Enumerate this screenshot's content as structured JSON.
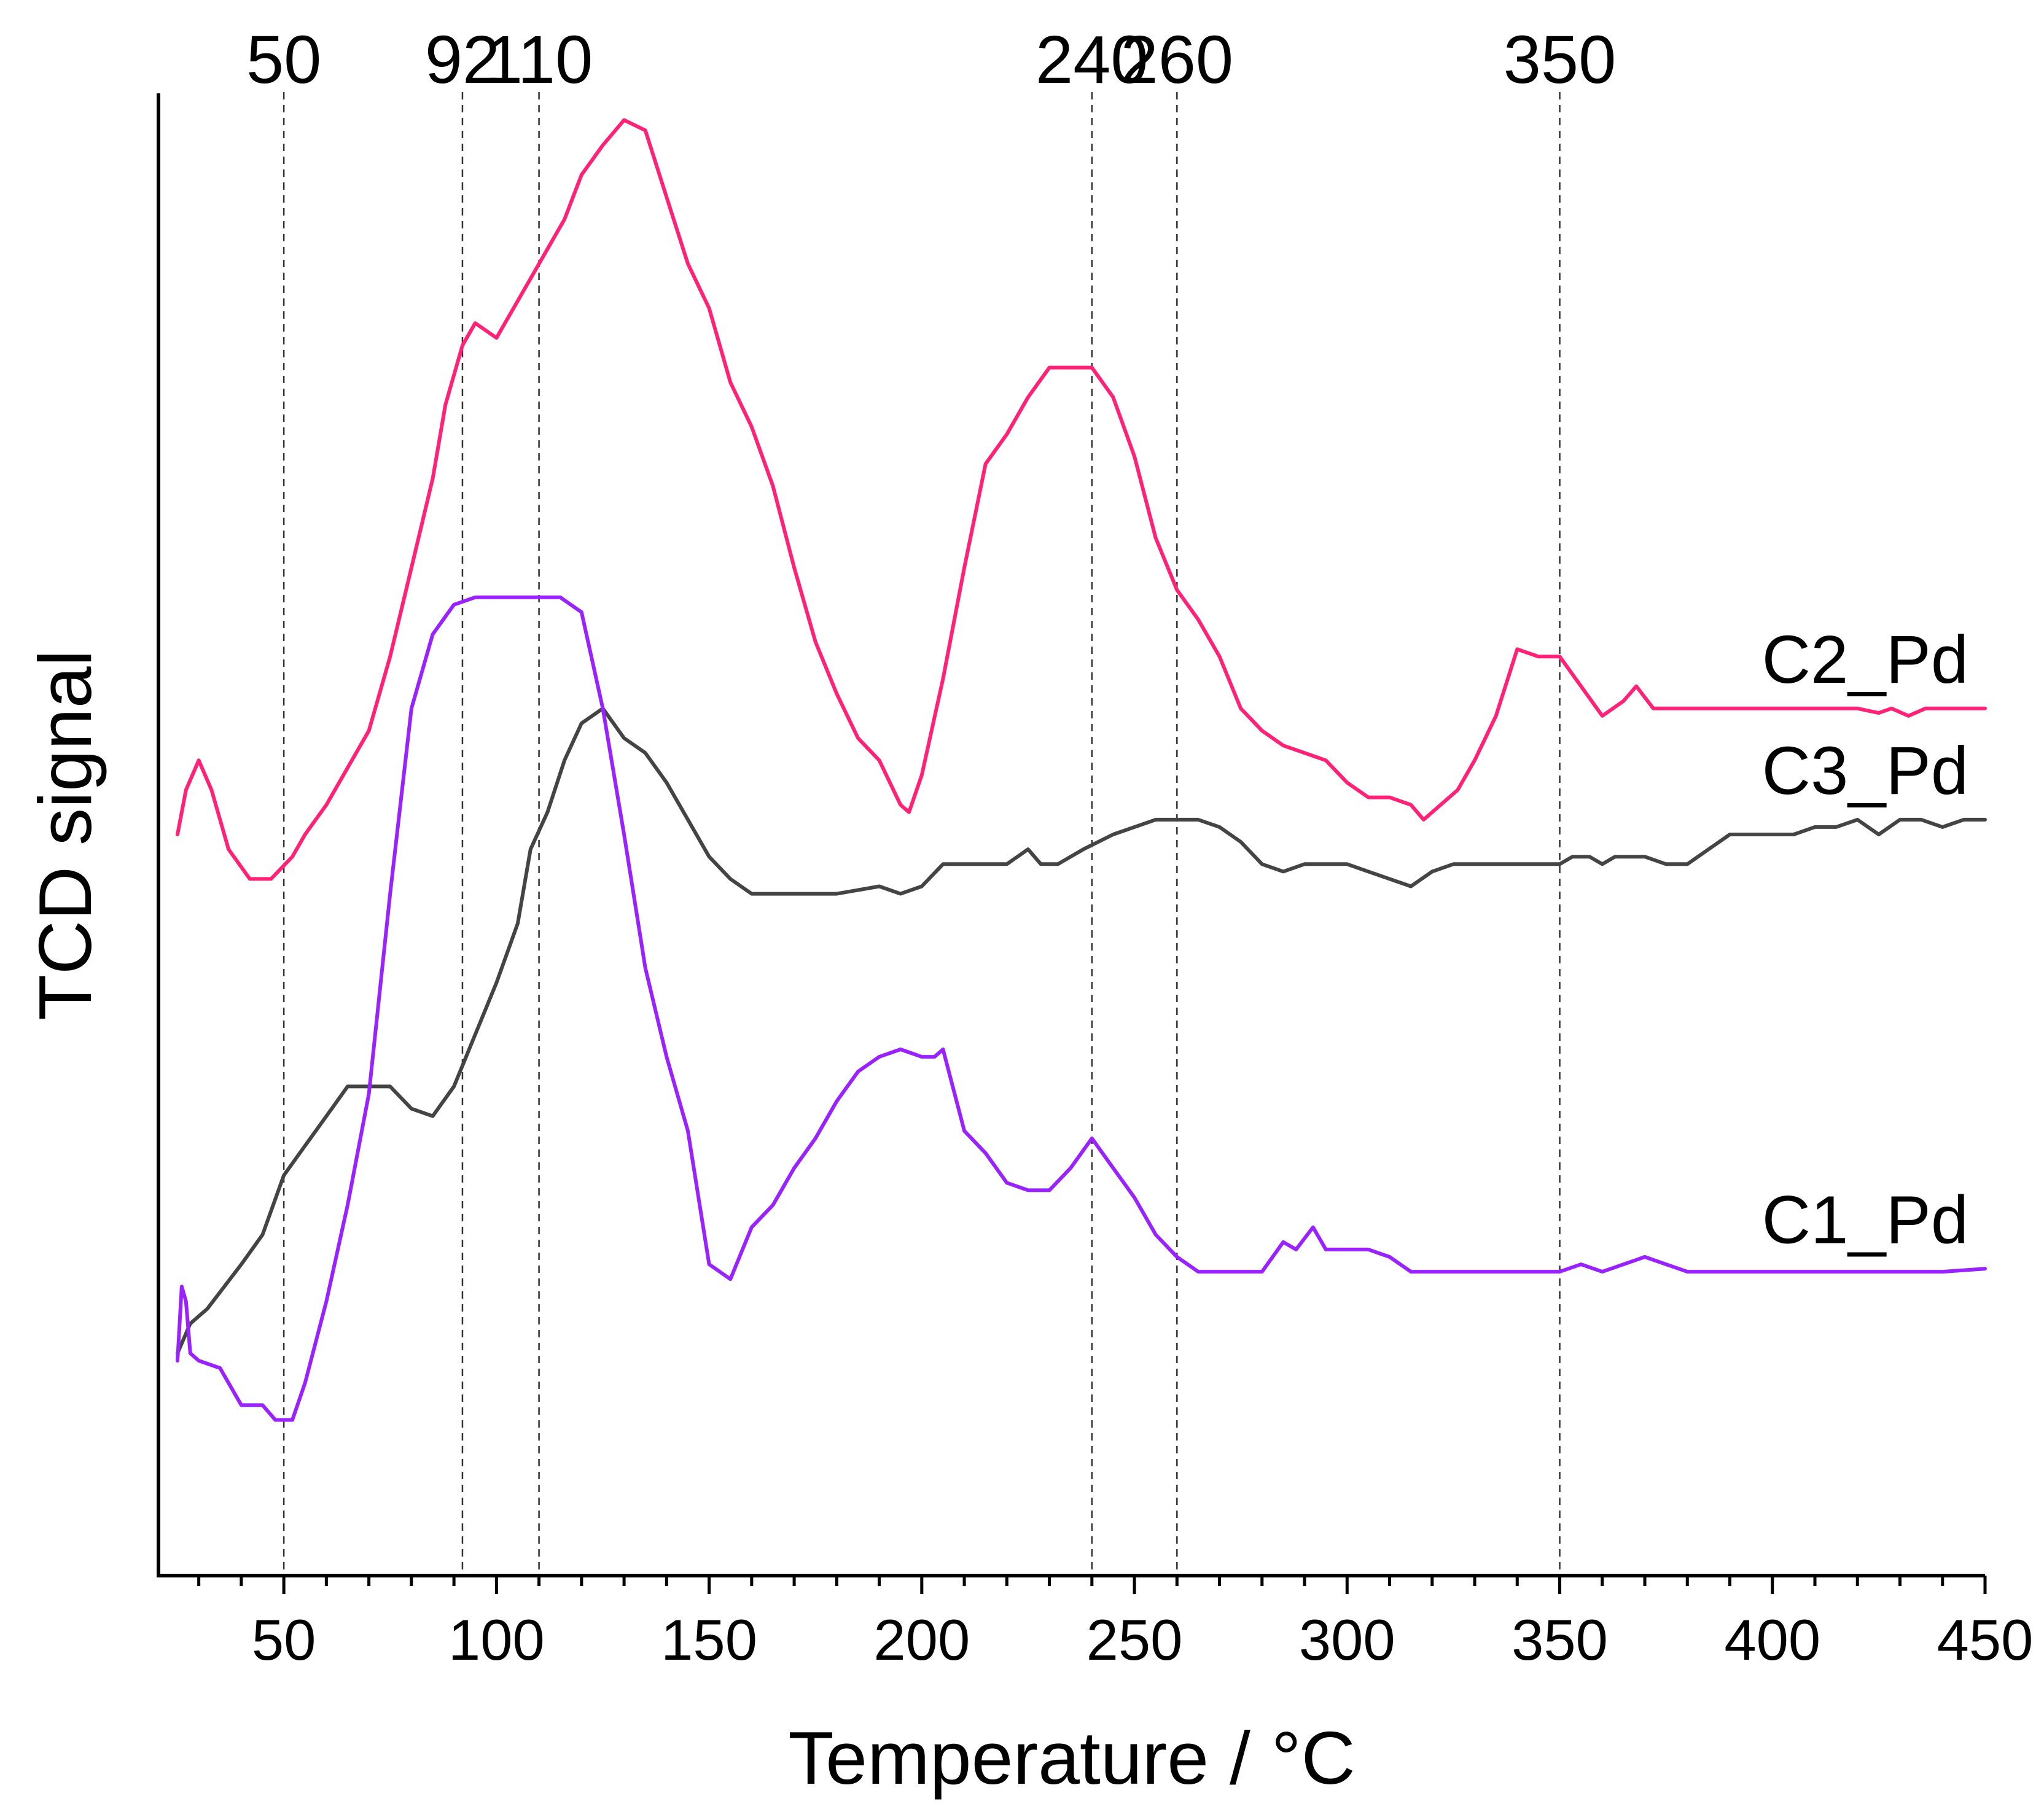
{
  "chart_data": {
    "type": "line",
    "title": "",
    "xlabel": "Temperature / °C",
    "ylabel": "TCD signal",
    "xlim": [
      20,
      450
    ],
    "ylim": [
      0,
      10
    ],
    "x_ticks": [
      50,
      100,
      150,
      200,
      250,
      300,
      350,
      400,
      450
    ],
    "y_ticks": [],
    "grid": false,
    "legend": "inline labels at right end of each curve",
    "reference_lines": [
      {
        "x": 50,
        "label": "50"
      },
      {
        "x": 92,
        "label": "92"
      },
      {
        "x": 110,
        "label": "110"
      },
      {
        "x": 240,
        "label": "240"
      },
      {
        "x": 260,
        "label": "260"
      },
      {
        "x": 350,
        "label": "350"
      }
    ],
    "series": [
      {
        "name": "C2_Pd",
        "label": "C2_Pd",
        "color": "#ff2277",
        "x": [
          25,
          27,
          30,
          33,
          37,
          42,
          47,
          52,
          55,
          60,
          65,
          70,
          75,
          80,
          85,
          88,
          92,
          95,
          100,
          104,
          108,
          112,
          116,
          120,
          125,
          130,
          135,
          140,
          145,
          150,
          155,
          160,
          165,
          170,
          175,
          180,
          185,
          190,
          195,
          197,
          200,
          205,
          210,
          215,
          220,
          225,
          230,
          235,
          240,
          245,
          250,
          255,
          260,
          265,
          270,
          275,
          280,
          285,
          290,
          295,
          300,
          305,
          310,
          315,
          318,
          322,
          326,
          330,
          335,
          340,
          345,
          350,
          355,
          360,
          365,
          368,
          372,
          380,
          400,
          420,
          425,
          428,
          432,
          436,
          440,
          450
        ],
        "values": [
          5.0,
          5.3,
          5.5,
          5.3,
          4.9,
          4.7,
          4.7,
          4.85,
          5.0,
          5.2,
          5.45,
          5.7,
          6.2,
          6.8,
          7.4,
          7.9,
          8.3,
          8.45,
          8.35,
          8.55,
          8.75,
          8.95,
          9.15,
          9.45,
          9.65,
          9.82,
          9.75,
          9.3,
          8.85,
          8.55,
          8.05,
          7.75,
          7.35,
          6.8,
          6.3,
          5.95,
          5.65,
          5.5,
          5.2,
          5.15,
          5.4,
          6.05,
          6.8,
          7.5,
          7.7,
          7.95,
          8.15,
          8.15,
          8.15,
          7.95,
          7.55,
          7.0,
          6.65,
          6.45,
          6.2,
          5.85,
          5.7,
          5.6,
          5.55,
          5.5,
          5.35,
          5.25,
          5.25,
          5.2,
          5.1,
          5.2,
          5.3,
          5.5,
          5.8,
          6.25,
          6.2,
          6.2,
          6.0,
          5.8,
          5.9,
          6.0,
          5.85,
          5.85,
          5.85,
          5.85,
          5.82,
          5.85,
          5.8,
          5.85,
          5.85,
          5.85
        ]
      },
      {
        "name": "C3_Pd",
        "label": "C3_Pd",
        "color": "#444444",
        "x": [
          25,
          28,
          32,
          36,
          40,
          45,
          50,
          55,
          60,
          65,
          70,
          75,
          80,
          85,
          90,
          95,
          100,
          105,
          108,
          112,
          116,
          120,
          125,
          130,
          135,
          140,
          145,
          150,
          155,
          160,
          170,
          180,
          190,
          195,
          200,
          205,
          210,
          220,
          225,
          228,
          232,
          238,
          245,
          250,
          255,
          260,
          265,
          270,
          275,
          280,
          285,
          290,
          295,
          300,
          305,
          310,
          315,
          320,
          325,
          330,
          335,
          340,
          345,
          350,
          353,
          357,
          360,
          363,
          367,
          370,
          375,
          380,
          385,
          390,
          395,
          400,
          405,
          410,
          415,
          420,
          425,
          430,
          435,
          440,
          445,
          450
        ],
        "values": [
          1.5,
          1.7,
          1.8,
          1.95,
          2.1,
          2.3,
          2.7,
          2.9,
          3.1,
          3.3,
          3.3,
          3.3,
          3.15,
          3.1,
          3.3,
          3.65,
          4.0,
          4.4,
          4.9,
          5.15,
          5.5,
          5.75,
          5.85,
          5.65,
          5.55,
          5.35,
          5.1,
          4.85,
          4.7,
          4.6,
          4.6,
          4.6,
          4.65,
          4.6,
          4.65,
          4.8,
          4.8,
          4.8,
          4.9,
          4.8,
          4.8,
          4.9,
          5.0,
          5.05,
          5.1,
          5.1,
          5.1,
          5.05,
          4.95,
          4.8,
          4.75,
          4.8,
          4.8,
          4.8,
          4.75,
          4.7,
          4.65,
          4.75,
          4.8,
          4.8,
          4.8,
          4.8,
          4.8,
          4.8,
          4.85,
          4.85,
          4.8,
          4.85,
          4.85,
          4.85,
          4.8,
          4.8,
          4.9,
          5.0,
          5.0,
          5.0,
          5.0,
          5.05,
          5.05,
          5.1,
          5.0,
          5.1,
          5.1,
          5.05,
          5.1,
          5.1
        ]
      },
      {
        "name": "C1_Pd",
        "label": "C1_Pd",
        "color": "#9922ff",
        "x": [
          25,
          26,
          27,
          28,
          30,
          35,
          40,
          45,
          48,
          52,
          55,
          60,
          65,
          70,
          75,
          80,
          85,
          90,
          95,
          100,
          105,
          110,
          115,
          120,
          125,
          130,
          135,
          140,
          145,
          150,
          155,
          160,
          165,
          170,
          175,
          180,
          185,
          190,
          195,
          200,
          203,
          205,
          210,
          215,
          220,
          225,
          230,
          235,
          240,
          245,
          250,
          255,
          260,
          265,
          270,
          275,
          280,
          285,
          288,
          292,
          295,
          300,
          305,
          310,
          315,
          320,
          325,
          330,
          335,
          340,
          345,
          350,
          355,
          360,
          365,
          370,
          375,
          380,
          395,
          400,
          410,
          420,
          430,
          440,
          450
        ],
        "values": [
          1.45,
          1.95,
          1.85,
          1.5,
          1.45,
          1.4,
          1.15,
          1.15,
          1.05,
          1.05,
          1.3,
          1.85,
          2.5,
          3.25,
          4.6,
          5.85,
          6.35,
          6.55,
          6.6,
          6.6,
          6.6,
          6.6,
          6.6,
          6.5,
          5.85,
          5.0,
          4.1,
          3.5,
          3.0,
          2.1,
          2.0,
          2.35,
          2.5,
          2.75,
          2.95,
          3.2,
          3.4,
          3.5,
          3.55,
          3.5,
          3.5,
          3.55,
          3.0,
          2.85,
          2.65,
          2.6,
          2.6,
          2.75,
          2.95,
          2.75,
          2.55,
          2.3,
          2.15,
          2.05,
          2.05,
          2.05,
          2.05,
          2.25,
          2.2,
          2.35,
          2.2,
          2.2,
          2.2,
          2.15,
          2.05,
          2.05,
          2.05,
          2.05,
          2.05,
          2.05,
          2.05,
          2.05,
          2.1,
          2.05,
          2.1,
          2.15,
          2.1,
          2.05,
          2.05,
          2.05,
          2.05,
          2.05,
          2.05,
          2.05,
          2.07
        ]
      }
    ]
  }
}
